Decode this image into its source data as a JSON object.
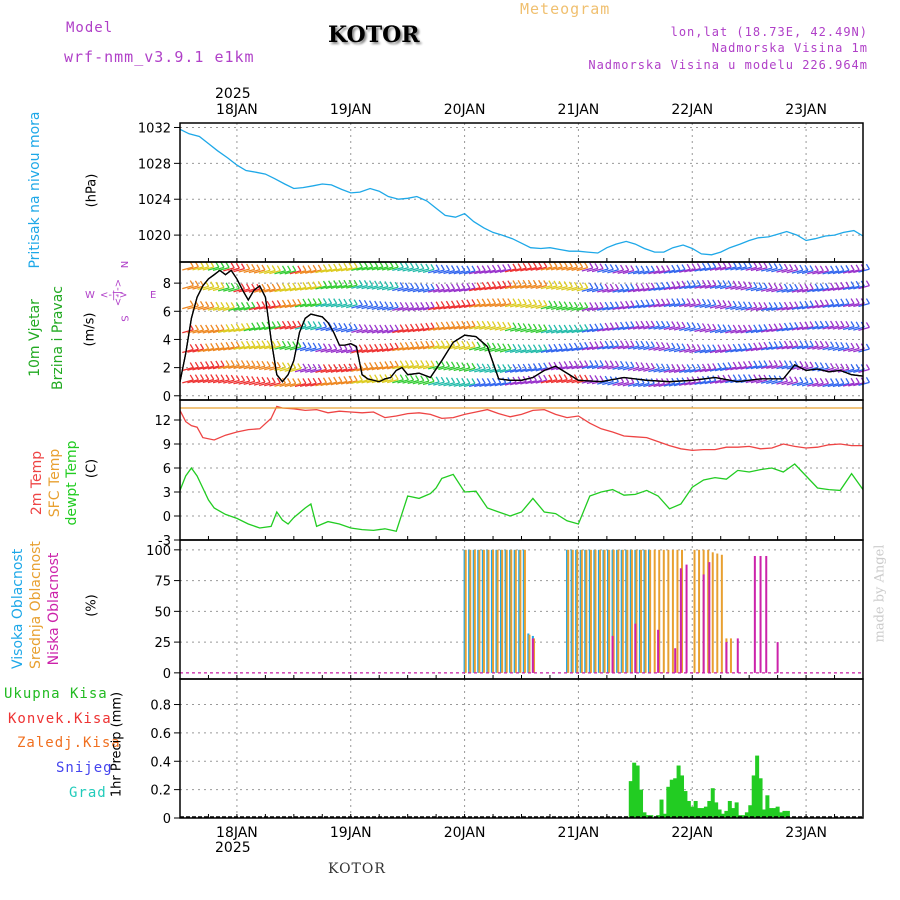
{
  "header": {
    "model_label": "Model",
    "model_name": "wrf-nmm_v3.9.1 e1km",
    "station": "KOTOR",
    "meteogram": "Meteogram",
    "lonlat": "lon,lat (18.73E, 42.49N)",
    "elevation": "Nadmorska Visina 1m",
    "model_elevation": "Nadmorska Visina u modelu 226.964m",
    "year": "2025",
    "footer_station": "KOTOR",
    "credit": "made by Angel"
  },
  "colors": {
    "pressure": "#1ea8e8",
    "temp2m": "#ee4444",
    "sfc": "#e8a030",
    "dewpt": "#22cc22",
    "high_cloud": "#1ea8e8",
    "mid_cloud": "#e8a030",
    "low_cloud": "#cc22aa",
    "precip_total": "#22cc22",
    "precip_conv": "#ee4444",
    "precip_frz": "#f07020",
    "snow": "#4444ee",
    "graupel": "#22ccbb",
    "wind_label": "#22aa22",
    "speed_line": "#000000"
  },
  "chart_data": [
    {
      "type": "line",
      "title": "Pritisak na nivou mora",
      "ylabel": "(hPa)",
      "ylim": [
        1017,
        1032.5
      ],
      "yticks": [
        1020,
        1024,
        1028,
        1032
      ],
      "x_dates": [
        "18JAN",
        "19JAN",
        "20JAN",
        "21JAN",
        "22JAN",
        "23JAN"
      ],
      "x_days_span": [
        -0.5,
        5.5
      ],
      "series": [
        {
          "name": "Pritisak na nivou mora",
          "color_key": "pressure",
          "x": [
            -0.5,
            -0.42,
            -0.33,
            -0.25,
            -0.17,
            -0.08,
            0,
            0.08,
            0.17,
            0.25,
            0.33,
            0.42,
            0.5,
            0.58,
            0.67,
            0.75,
            0.83,
            0.92,
            1,
            1.08,
            1.17,
            1.25,
            1.33,
            1.42,
            1.5,
            1.58,
            1.67,
            1.75,
            1.83,
            1.92,
            2,
            2.08,
            2.17,
            2.25,
            2.33,
            2.42,
            2.5,
            2.58,
            2.67,
            2.75,
            2.83,
            2.92,
            3,
            3.08,
            3.17,
            3.25,
            3.33,
            3.42,
            3.5,
            3.58,
            3.67,
            3.75,
            3.83,
            3.92,
            4,
            4.08,
            4.17,
            4.25,
            4.33,
            4.42,
            4.5,
            4.58,
            4.67,
            4.75,
            4.83,
            4.92,
            5,
            5.08,
            5.17,
            5.25,
            5.33,
            5.42,
            5.5
          ],
          "y": [
            1031.8,
            1031.3,
            1031.0,
            1030.2,
            1029.4,
            1028.6,
            1027.8,
            1027.2,
            1027.0,
            1026.8,
            1026.3,
            1025.7,
            1025.2,
            1025.3,
            1025.5,
            1025.7,
            1025.6,
            1025.1,
            1024.7,
            1024.8,
            1025.2,
            1024.9,
            1024.3,
            1024.0,
            1024.1,
            1024.3,
            1023.8,
            1023.0,
            1022.2,
            1022.0,
            1022.4,
            1021.5,
            1020.8,
            1020.3,
            1020.0,
            1019.6,
            1019.1,
            1018.6,
            1018.5,
            1018.6,
            1018.4,
            1018.2,
            1018.2,
            1018.1,
            1018.0,
            1018.6,
            1019.0,
            1019.3,
            1019.0,
            1018.5,
            1018.1,
            1018.1,
            1018.6,
            1018.9,
            1018.5,
            1017.9,
            1017.8,
            1018.1,
            1018.6,
            1019.0,
            1019.4,
            1019.7,
            1019.8,
            1020.1,
            1020.4,
            1020.0,
            1019.4,
            1019.6,
            1019.9,
            1020.0,
            1020.3,
            1020.5,
            1019.9
          ]
        }
      ]
    },
    {
      "type": "line",
      "title": "10m Vjetar Brzina i Pravac",
      "ylabel": "(m/s)",
      "ylim": [
        -0.3,
        9.5
      ],
      "yticks": [
        0,
        2,
        4,
        6,
        8
      ],
      "compass": {
        "n": "N",
        "s": "S",
        "e": "E",
        "w": "W",
        "ns_arrow": "<-|->",
        "ew_arrow": "<-|->"
      },
      "series": [
        {
          "name": "Brzina",
          "color_key": "speed_line",
          "x": [
            -0.5,
            -0.45,
            -0.4,
            -0.35,
            -0.3,
            -0.25,
            -0.2,
            -0.15,
            -0.1,
            -0.05,
            0,
            0.05,
            0.1,
            0.15,
            0.2,
            0.25,
            0.3,
            0.35,
            0.4,
            0.45,
            0.5,
            0.55,
            0.6,
            0.65,
            0.7,
            0.75,
            0.8,
            0.85,
            0.9,
            0.95,
            1.0,
            1.05,
            1.1,
            1.15,
            1.2,
            1.25,
            1.3,
            1.35,
            1.4,
            1.45,
            1.5,
            1.6,
            1.7,
            1.8,
            1.9,
            2.0,
            2.1,
            2.2,
            2.3,
            2.4,
            2.5,
            2.6,
            2.7,
            2.8,
            2.9,
            3.0,
            3.2,
            3.4,
            3.6,
            3.8,
            4.0,
            4.2,
            4.4,
            4.6,
            4.8,
            4.9,
            5.0,
            5.1,
            5.2,
            5.3,
            5.4,
            5.5
          ],
          "y": [
            1.0,
            3.0,
            5.5,
            7.0,
            7.8,
            8.3,
            8.6,
            8.9,
            8.6,
            8.9,
            8.3,
            7.5,
            6.8,
            7.5,
            7.8,
            7.0,
            4.0,
            1.5,
            1.0,
            1.5,
            2.5,
            4.5,
            5.5,
            5.8,
            5.7,
            5.6,
            5.2,
            4.5,
            3.6,
            3.6,
            3.7,
            3.5,
            1.5,
            1.2,
            1.1,
            1.0,
            1.2,
            1.3,
            1.8,
            2.0,
            1.5,
            1.6,
            1.3,
            2.5,
            3.8,
            4.3,
            4.2,
            3.5,
            1.2,
            1.1,
            1.1,
            1.3,
            1.8,
            2.1,
            1.6,
            1.1,
            1.0,
            1.3,
            1.1,
            1.0,
            1.1,
            1.3,
            1.0,
            1.2,
            1.2,
            2.2,
            1.8,
            1.9,
            1.7,
            1.8,
            1.5,
            1.4
          ]
        }
      ]
    },
    {
      "type": "line",
      "title": "2m Temp / SFC Temp / dewpt Temp",
      "ylabel": "(C)",
      "ylim": [
        -3,
        14.5
      ],
      "yticks": [
        -3,
        0,
        3,
        6,
        9,
        12
      ],
      "series": [
        {
          "name": "2m Temp",
          "color_key": "temp2m",
          "x": [
            -0.5,
            -0.45,
            -0.4,
            -0.35,
            -0.3,
            -0.2,
            -0.1,
            0,
            0.1,
            0.2,
            0.3,
            0.35,
            0.4,
            0.5,
            0.6,
            0.7,
            0.8,
            0.9,
            1.0,
            1.1,
            1.2,
            1.3,
            1.4,
            1.5,
            1.6,
            1.7,
            1.8,
            1.9,
            2.0,
            2.1,
            2.2,
            2.3,
            2.4,
            2.5,
            2.6,
            2.7,
            2.8,
            2.9,
            3.0,
            3.1,
            3.2,
            3.3,
            3.4,
            3.5,
            3.6,
            3.7,
            3.8,
            3.9,
            4.0,
            4.1,
            4.2,
            4.3,
            4.4,
            4.5,
            4.6,
            4.7,
            4.8,
            4.9,
            5.0,
            5.1,
            5.2,
            5.3,
            5.4,
            5.5
          ],
          "y": [
            13.2,
            11.8,
            11.3,
            11.1,
            9.8,
            9.5,
            10.1,
            10.5,
            10.8,
            10.9,
            12.2,
            13.7,
            13.5,
            13.4,
            13.2,
            13.3,
            12.9,
            13.1,
            13.0,
            12.9,
            13.0,
            12.3,
            12.5,
            12.8,
            12.9,
            12.7,
            12.2,
            12.3,
            12.7,
            13.0,
            13.3,
            12.8,
            12.4,
            12.7,
            13.2,
            13.3,
            12.7,
            12.3,
            12.5,
            11.6,
            10.9,
            10.5,
            10.0,
            9.9,
            9.8,
            9.3,
            8.8,
            8.4,
            8.2,
            8.3,
            8.3,
            8.6,
            8.6,
            8.7,
            8.4,
            8.5,
            9.0,
            8.7,
            8.5,
            8.6,
            8.9,
            9.0,
            8.8,
            8.8
          ]
        },
        {
          "name": "SFC Temp",
          "color_key": "sfc",
          "x": [
            -0.5,
            5.5
          ],
          "y": [
            13.5,
            13.5
          ]
        },
        {
          "name": "dewpt Temp",
          "color_key": "dewpt",
          "x": [
            -0.5,
            -0.45,
            -0.4,
            -0.35,
            -0.3,
            -0.25,
            -0.2,
            -0.1,
            0,
            0.1,
            0.2,
            0.3,
            0.35,
            0.4,
            0.45,
            0.5,
            0.6,
            0.65,
            0.7,
            0.8,
            0.9,
            1.0,
            1.1,
            1.2,
            1.3,
            1.4,
            1.5,
            1.6,
            1.7,
            1.75,
            1.8,
            1.9,
            2.0,
            2.1,
            2.2,
            2.3,
            2.4,
            2.5,
            2.6,
            2.7,
            2.8,
            2.9,
            3.0,
            3.1,
            3.2,
            3.3,
            3.4,
            3.5,
            3.6,
            3.7,
            3.8,
            3.9,
            4.0,
            4.1,
            4.2,
            4.3,
            4.4,
            4.5,
            4.6,
            4.7,
            4.8,
            4.9,
            5.0,
            5.1,
            5.2,
            5.3,
            5.4,
            5.5
          ],
          "y": [
            3.2,
            5.0,
            6.0,
            5.0,
            3.5,
            2.0,
            1.0,
            0.2,
            -0.3,
            -1.0,
            -1.5,
            -1.3,
            0.5,
            -0.5,
            -1.0,
            -0.2,
            1.0,
            1.5,
            -1.3,
            -0.7,
            -1.0,
            -1.5,
            -1.7,
            -1.8,
            -1.6,
            -1.9,
            2.5,
            2.2,
            2.8,
            3.5,
            4.7,
            5.2,
            3.0,
            3.1,
            1.0,
            0.5,
            0.0,
            0.5,
            2.2,
            0.5,
            0.3,
            -0.6,
            -1.0,
            2.5,
            3.0,
            3.3,
            2.6,
            2.7,
            3.2,
            2.5,
            0.9,
            1.5,
            3.6,
            4.5,
            4.8,
            4.6,
            5.7,
            5.5,
            5.8,
            6.0,
            5.5,
            6.5,
            5.0,
            3.5,
            3.3,
            3.2,
            5.3,
            3.3
          ]
        }
      ]
    },
    {
      "type": "bar",
      "title": "Visoka / Srednja / Niska Oblacnost",
      "ylabel": "(%)",
      "ylim": [
        -5,
        108
      ],
      "yticks": [
        0,
        25,
        50,
        75,
        100
      ],
      "series": [
        {
          "name": "Visoka Oblacnost",
          "color_key": "high_cloud",
          "x": [
            2.0,
            2.04,
            2.08,
            2.12,
            2.16,
            2.2,
            2.24,
            2.28,
            2.32,
            2.36,
            2.4,
            2.44,
            2.48,
            2.52,
            2.56,
            2.6,
            2.9,
            2.94,
            2.98,
            3.02,
            3.06,
            3.1,
            3.14,
            3.18,
            3.22,
            3.26,
            3.3,
            3.34,
            3.38,
            3.42,
            3.46,
            3.5,
            3.54,
            3.58,
            3.62
          ],
          "y": [
            100,
            100,
            100,
            100,
            100,
            100,
            100,
            100,
            100,
            100,
            100,
            100,
            100,
            100,
            32,
            30,
            100,
            100,
            100,
            100,
            100,
            100,
            100,
            100,
            100,
            100,
            100,
            100,
            100,
            100,
            100,
            100,
            100,
            100,
            100
          ]
        },
        {
          "name": "Srednja Oblacnost",
          "color_key": "mid_cloud",
          "x": [
            2.01,
            2.05,
            2.09,
            2.13,
            2.17,
            2.21,
            2.25,
            2.29,
            2.33,
            2.37,
            2.41,
            2.45,
            2.49,
            2.53,
            2.57,
            2.61,
            2.91,
            2.95,
            2.99,
            3.03,
            3.07,
            3.11,
            3.15,
            3.19,
            3.23,
            3.27,
            3.31,
            3.35,
            3.39,
            3.43,
            3.47,
            3.51,
            3.55,
            3.59,
            3.63,
            3.67,
            3.71,
            3.75,
            3.79,
            3.83,
            3.87,
            3.91,
            4.02,
            4.06,
            4.1,
            4.14,
            4.18,
            4.22,
            4.26,
            4.3,
            4.34
          ],
          "y": [
            100,
            100,
            100,
            100,
            100,
            100,
            100,
            100,
            100,
            100,
            100,
            100,
            100,
            100,
            31,
            28,
            100,
            100,
            100,
            100,
            100,
            100,
            100,
            100,
            100,
            100,
            100,
            100,
            100,
            100,
            100,
            100,
            100,
            100,
            100,
            100,
            100,
            100,
            100,
            100,
            100,
            100,
            100,
            100,
            100,
            100,
            98,
            97,
            96,
            28,
            28
          ]
        },
        {
          "name": "Niska Oblacnost",
          "color_key": "low_cloud",
          "x": [
            2.6,
            3.3,
            3.5,
            3.7,
            3.85,
            3.9,
            3.95,
            4.1,
            4.15,
            4.3,
            4.4,
            4.55,
            4.6,
            4.65,
            4.75
          ],
          "y": [
            28,
            30,
            40,
            35,
            20,
            85,
            88,
            80,
            90,
            25,
            28,
            95,
            95,
            95,
            25
          ]
        }
      ]
    },
    {
      "type": "bar",
      "title": "1hr Precip",
      "ylabel": "1hr Precip (mm)",
      "ylim": [
        0,
        0.98
      ],
      "yticks": [
        0,
        0.2,
        0.4,
        0.6,
        0.8
      ],
      "legend": [
        "Ukupna Kisa",
        "Konvek.Kisa",
        "Zaledj.Kisa",
        "Snijeg",
        "Grad"
      ],
      "series": [
        {
          "name": "Ukupna Kisa",
          "color_key": "precip_total",
          "x": [
            3.46,
            3.49,
            3.52,
            3.55,
            3.58,
            3.61,
            3.64,
            3.7,
            3.73,
            3.76,
            3.79,
            3.82,
            3.85,
            3.88,
            3.91,
            3.94,
            3.97,
            4.0,
            4.03,
            4.06,
            4.09,
            4.12,
            4.15,
            4.18,
            4.21,
            4.24,
            4.27,
            4.3,
            4.33,
            4.36,
            4.39,
            4.42,
            4.45,
            4.48,
            4.51,
            4.54,
            4.57,
            4.6,
            4.63,
            4.66,
            4.69,
            4.72,
            4.75,
            4.78,
            4.81,
            4.84
          ],
          "y": [
            0.26,
            0.39,
            0.37,
            0.2,
            0.04,
            0.02,
            0.02,
            0.02,
            0.13,
            0.03,
            0.22,
            0.27,
            0.28,
            0.37,
            0.3,
            0.19,
            0.12,
            0.08,
            0.12,
            0.07,
            0.07,
            0.08,
            0.12,
            0.21,
            0.11,
            0.06,
            0.03,
            0.05,
            0.12,
            0.07,
            0.11,
            0.02,
            0.02,
            0.04,
            0.09,
            0.3,
            0.44,
            0.28,
            0.06,
            0.16,
            0.07,
            0.07,
            0.08,
            0.04,
            0.05,
            0.05
          ]
        }
      ]
    }
  ]
}
